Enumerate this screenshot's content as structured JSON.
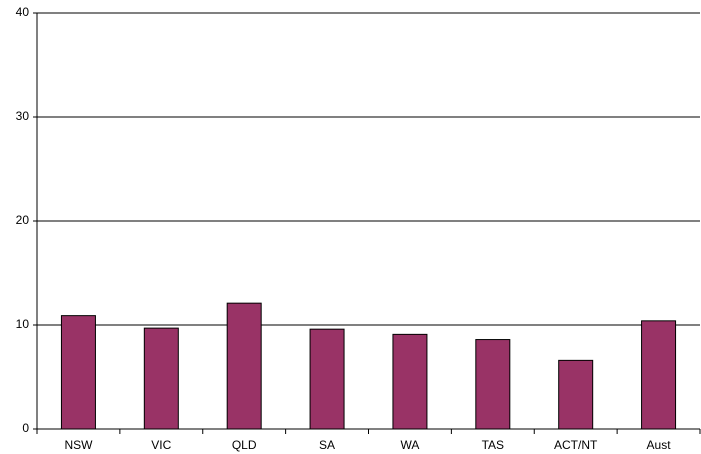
{
  "chart_data": {
    "type": "bar",
    "categories": [
      "NSW",
      "VIC",
      "QLD",
      "SA",
      "WA",
      "TAS",
      "ACT/NT",
      "Aust"
    ],
    "values": [
      10.9,
      9.7,
      12.1,
      9.6,
      9.1,
      8.6,
      6.6,
      10.4
    ],
    "color": "#993366",
    "ylim": [
      0,
      40
    ],
    "yticks": [
      0,
      10,
      20,
      30,
      40
    ],
    "grid": true
  }
}
